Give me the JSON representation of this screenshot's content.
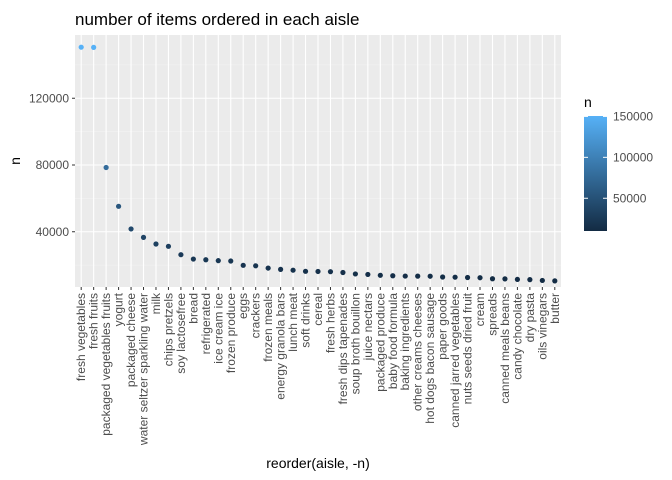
{
  "chart_data": {
    "type": "scatter",
    "title": "number of items ordered in each aisle",
    "xlabel": "reorder(aisle, -n)",
    "ylabel": "n",
    "ylim": [
      0,
      155000
    ],
    "yticks": [
      40000,
      80000,
      120000
    ],
    "grid": true,
    "legend": {
      "title": "n",
      "placement": "right",
      "type": "colorbar",
      "ticks": [
        50000,
        100000,
        150000
      ],
      "range": [
        10000,
        150500
      ],
      "color_low": "#132B43",
      "color_high": "#56B1F7"
    },
    "categories": [
      "fresh vegetables",
      "fresh fruits",
      "packaged vegetables fruits",
      "yogurt",
      "packaged cheese",
      "water seltzer sparkling water",
      "milk",
      "chips pretzels",
      "soy lactosefree",
      "bread",
      "refrigerated",
      "ice cream ice",
      "frozen produce",
      "eggs",
      "crackers",
      "frozen meals",
      "energy granola bars",
      "lunch meat",
      "soft drinks",
      "cereal",
      "fresh herbs",
      "fresh dips tapenades",
      "soup broth bouillon",
      "juice nectars",
      "packaged produce",
      "baby food formula",
      "baking ingredients",
      "other creams cheeses",
      "hot dogs bacon sausage",
      "paper goods",
      "canned jarred vegetables",
      "nuts seeds dried fruit",
      "cream",
      "spreads",
      "canned meals beans",
      "candy chocolate",
      "dry pasta",
      "oils vinegars",
      "butter"
    ],
    "values": [
      150609,
      150473,
      78493,
      55240,
      41699,
      36617,
      32644,
      31269,
      26240,
      23635,
      23228,
      22676,
      22453,
      19875,
      19592,
      18221,
      17449,
      16957,
      16279,
      16201,
      16071,
      15580,
      14728,
      14434,
      13908,
      13627,
      13444,
      13419,
      13354,
      12896,
      12780,
      12569,
      12455,
      11841,
      11749,
      11441,
      11300,
      10814,
      10575
    ]
  }
}
